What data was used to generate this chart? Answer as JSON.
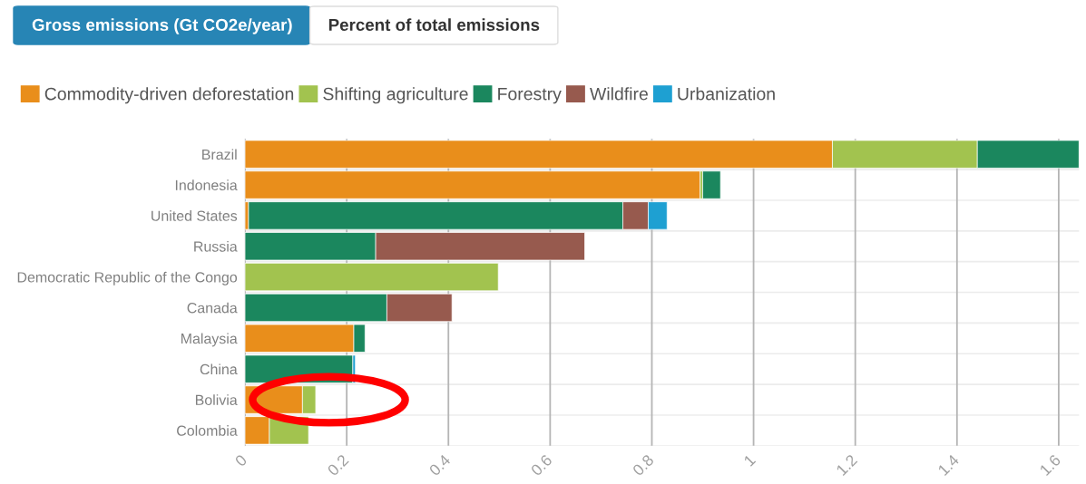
{
  "chart_data": {
    "type": "bar",
    "orientation": "horizontal",
    "stacked": true,
    "categories": [
      "Brazil",
      "Indonesia",
      "United States",
      "Russia",
      "Democratic Republic of the Congo",
      "Canada",
      "Malaysia",
      "China",
      "Bolivia",
      "Colombia"
    ],
    "series": [
      {
        "name": "Commodity-driven deforestation",
        "color": "#e98e1b",
        "values": [
          1.155,
          0.895,
          0.007,
          null,
          null,
          null,
          0.214,
          null,
          0.113,
          0.048
        ]
      },
      {
        "name": "Shifting agriculture",
        "color": "#a2c34f",
        "values": [
          0.285,
          0.005,
          null,
          null,
          0.498,
          null,
          null,
          null,
          0.026,
          0.077
        ]
      },
      {
        "name": "Forestry",
        "color": "#1b875e",
        "values": [
          0.2,
          0.035,
          0.736,
          0.257,
          null,
          0.279,
          0.022,
          0.212,
          null,
          null
        ]
      },
      {
        "name": "Wildfire",
        "color": "#975a4e",
        "values": [
          null,
          null,
          0.05,
          0.411,
          null,
          0.128,
          null,
          null,
          null,
          null
        ]
      },
      {
        "name": "Urbanization",
        "color": "#1ea0d2",
        "values": [
          null,
          null,
          0.037,
          null,
          null,
          null,
          null,
          0.005,
          null,
          null
        ]
      }
    ],
    "xlim": [
      0,
      1.64
    ],
    "xticks": [
      0,
      0.2,
      0.4,
      0.6,
      0.8,
      1,
      1.2,
      1.4,
      1.6
    ],
    "grid": true,
    "legend": "top left",
    "annotations": [
      "Gross emissions (Gt CO2e/year)",
      "Percent of total emissions"
    ]
  }
}
